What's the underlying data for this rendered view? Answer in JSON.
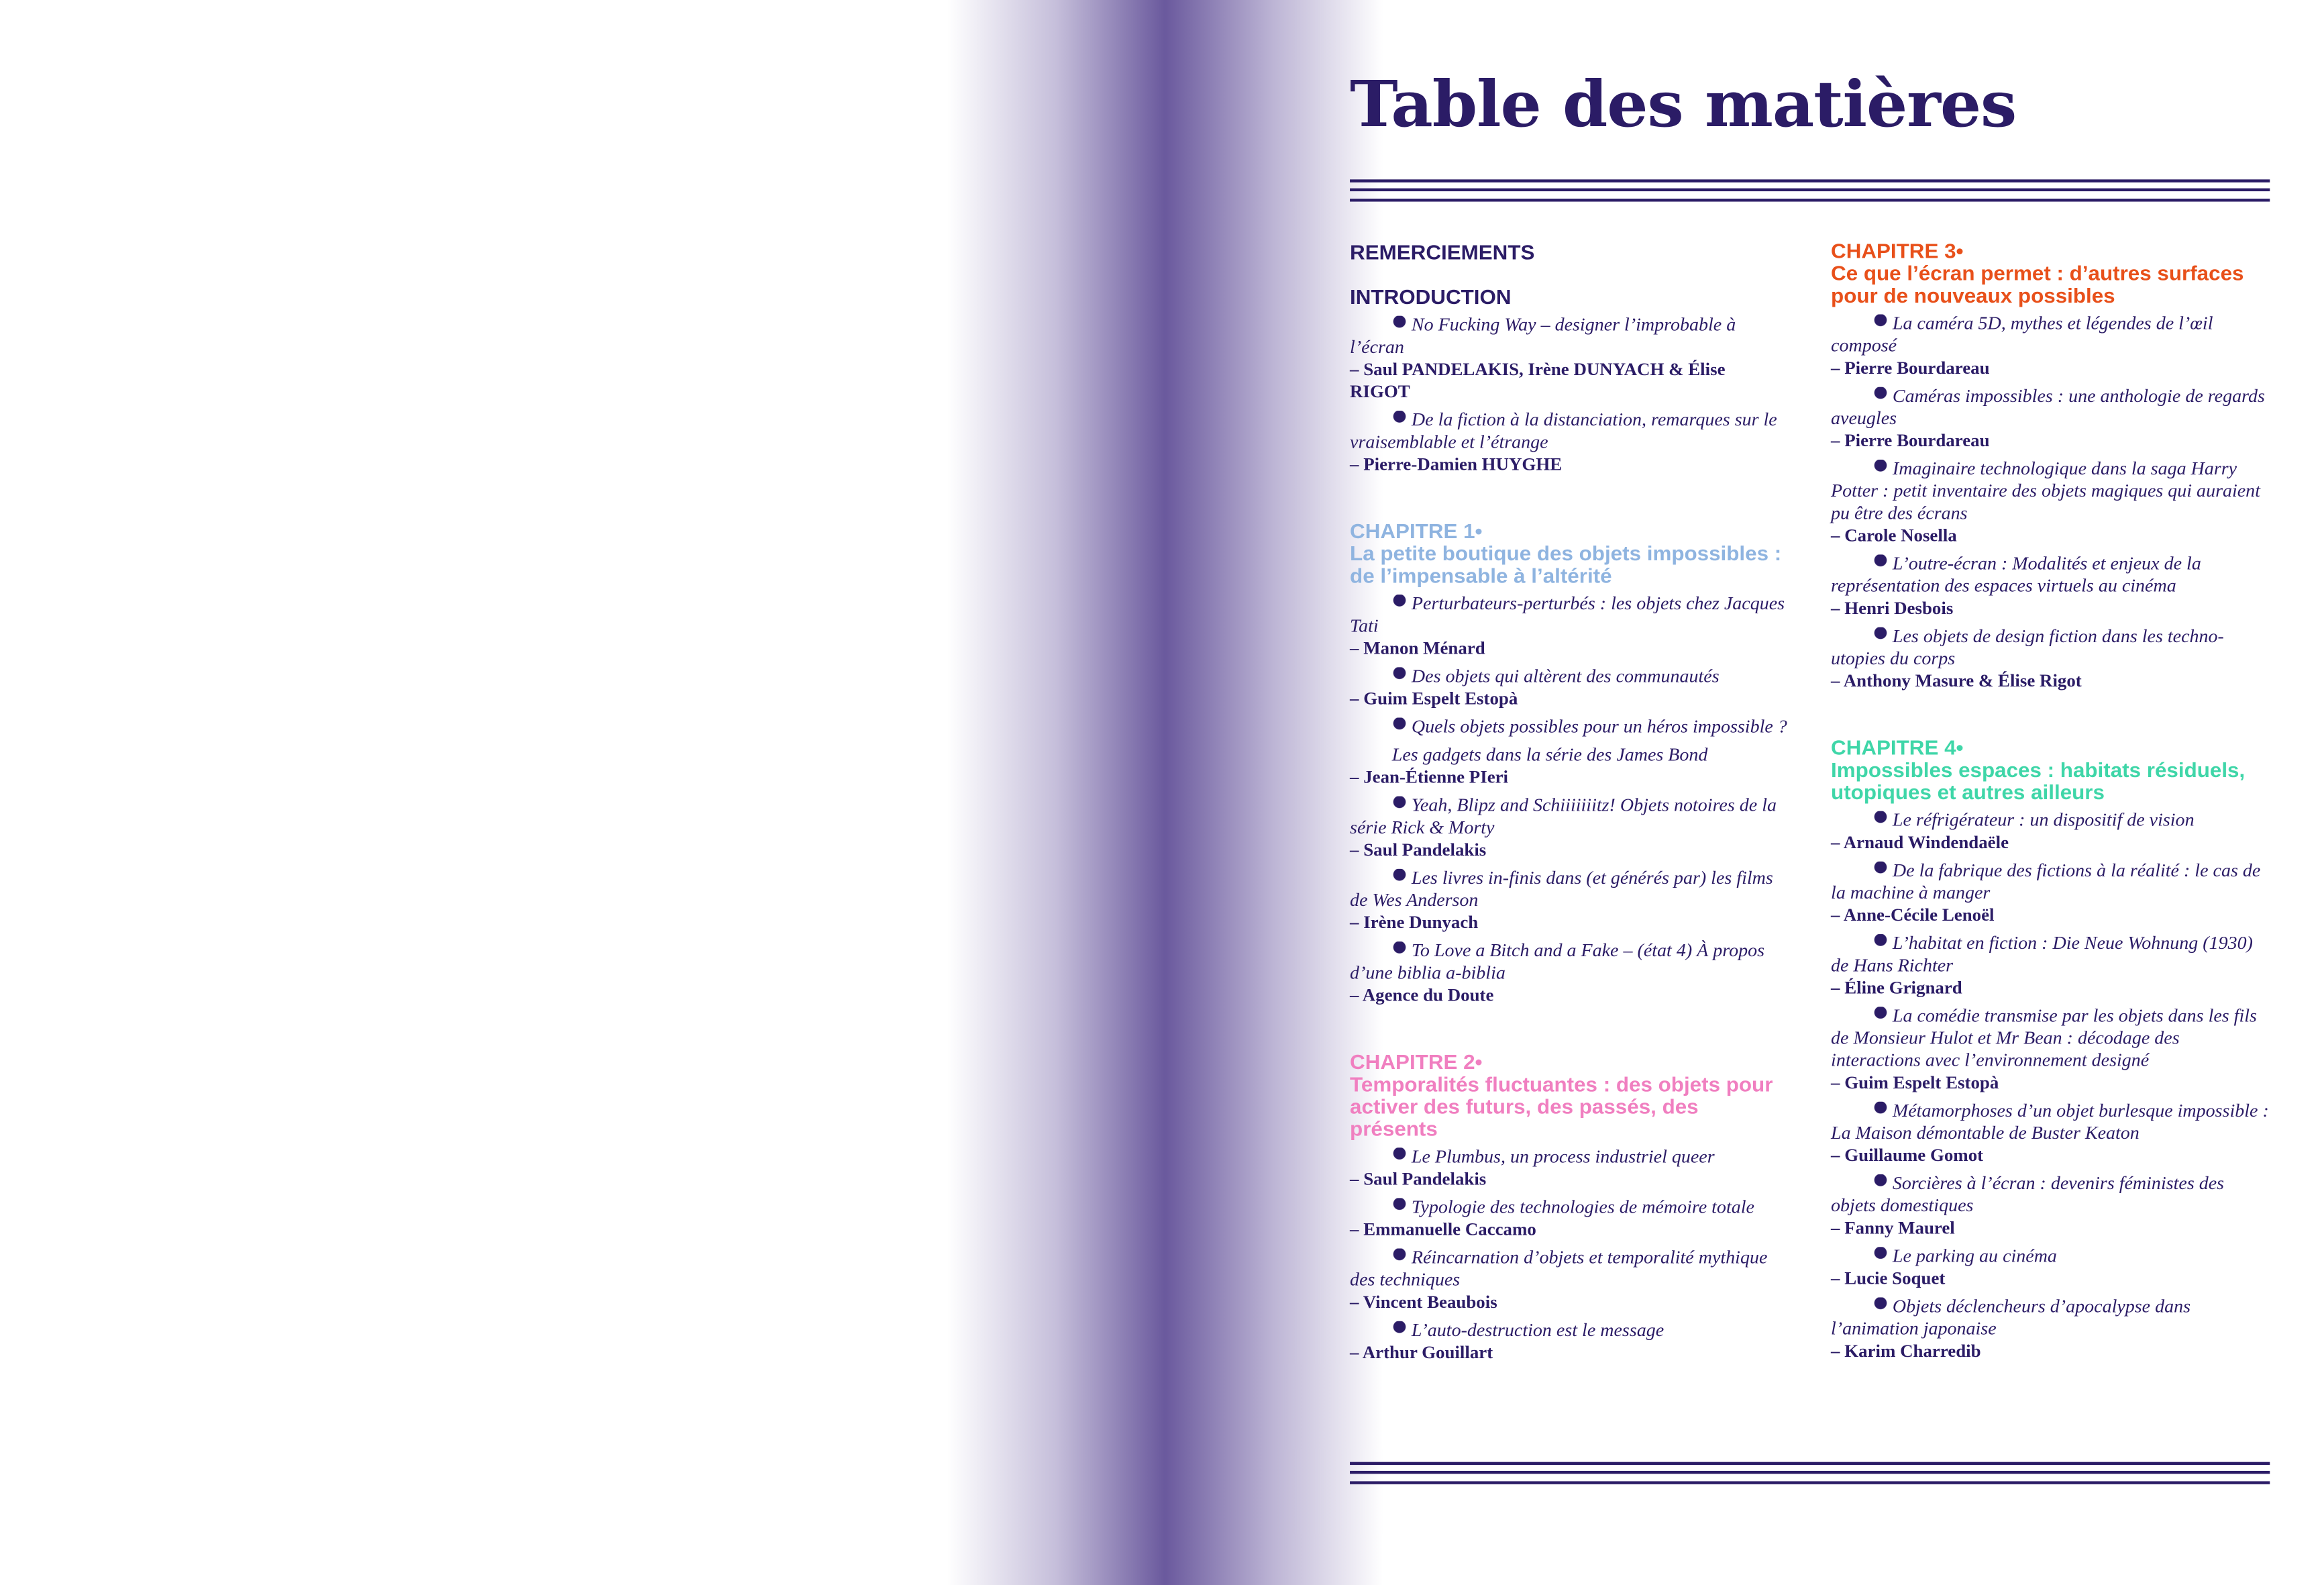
{
  "title": "Table des matières",
  "left": [
    {
      "heading": "REMERCIEMENTS"
    },
    {
      "heading": "INTRODUCTION",
      "entries": [
        {
          "title": "No Fucking Way – designer l’improbable à l’écran",
          "author": "– Saul PANDELAKIS, Irène DUNYACH & Élise RIGOT"
        },
        {
          "title": "De la fiction à la distanciation, remarques sur le vraisemblable et l’étrange",
          "author": "– Pierre-Damien HUYGHE"
        }
      ]
    },
    {
      "label": "CHAPITRE 1•",
      "subtitle": "La petite boutique des objets impossibles : de l’impensable à l’altérité",
      "entries": [
        {
          "title": "Perturbateurs-perturbés : les objets chez Jacques Tati",
          "author": "– Manon Ménard"
        },
        {
          "title": "Des objets qui altèrent des communautés",
          "author": "– Guim Espelt Estopà"
        },
        {
          "title": "Quels objets possibles pour un héros impossible ?",
          "subtitle": "Les gadgets dans la série des James Bond",
          "author": "– Jean-Étienne PIeri"
        },
        {
          "title": "Yeah, Blipz and Schiiiiiiitz! Objets notoires de la série Rick & Morty",
          "author": "– Saul Pandelakis"
        },
        {
          "title": "Les livres in-finis dans (et générés par) les films de Wes Anderson",
          "author": "– Irène Dunyach"
        },
        {
          "title": "To Love a Bitch and a Fake – (état 4) À propos d’une biblia a-biblia",
          "author": "– Agence du Doute"
        }
      ]
    },
    {
      "label": "CHAPITRE 2•",
      "subtitle": "Temporalités fluctuantes : des objets pour activer des futurs, des passés, des présents",
      "entries": [
        {
          "title": "Le Plumbus, un process industriel queer",
          "author": "– Saul Pandelakis"
        },
        {
          "title": "Typologie des technologies de mémoire totale",
          "author": "– Emmanuelle Caccamo"
        },
        {
          "title": "Réincarnation d’objets et temporalité mythique des techniques",
          "author": "– Vincent Beaubois"
        },
        {
          "title": "L’auto-destruction est le message",
          "author": "– Arthur Gouillart"
        }
      ]
    }
  ],
  "right": [
    {
      "label": "CHAPITRE 3•",
      "subtitle": "Ce que l’écran permet : d’autres surfaces pour de nouveaux possibles",
      "entries": [
        {
          "title": "La caméra 5D, mythes et légendes de l’œil composé",
          "author": "– Pierre Bourdareau"
        },
        {
          "title": "Caméras impossibles : une anthologie de regards aveugles",
          "author": "– Pierre Bourdareau"
        },
        {
          "title": "Imaginaire technologique dans la saga Harry Potter : petit inventaire des objets magiques qui auraient pu être des écrans",
          "author": "– Carole Nosella"
        },
        {
          "title": "L’outre-écran : Modalités et enjeux de la représentation des espaces virtuels au cinéma",
          "author": "– Henri Desbois"
        },
        {
          "title": "Les objets de design fiction dans les techno-utopies du corps",
          "author": "– Anthony Masure & Élise Rigot"
        }
      ]
    },
    {
      "label": "CHAPITRE 4•",
      "subtitle": "Impossibles espaces : habitats résiduels, utopiques et autres ailleurs",
      "entries": [
        {
          "title": "Le réfrigérateur : un dispositif de vision",
          "author": "– Arnaud Windendaële"
        },
        {
          "title": "De la fabrique des fictions à la réalité : le cas de la machine à manger",
          "author": "– Anne-Cécile Lenoël"
        },
        {
          "title": "L’habitat en fiction : Die Neue Wohnung (1930) de Hans Richter",
          "author": "– Éline Grignard"
        },
        {
          "title": "La comédie transmise par les objets dans les fils de Monsieur Hulot et Mr Bean : décodage des interactions avec l’environnement designé",
          "author": "– Guim Espelt Estopà"
        },
        {
          "title": "Métamorphoses d’un objet burlesque impossible : La Maison démontable de Buster Keaton",
          "author": "– Guillaume Gomot"
        },
        {
          "title": "Sorcières à l’écran : devenirs féministes des objets domestiques",
          "author": "– Fanny Maurel"
        },
        {
          "title": "Le parking au cinéma",
          "author": "– Lucie Soquet"
        },
        {
          "title": "Objets déclencheurs d’apocalypse dans l’animation japonaise",
          "author": "– Karim Charredib"
        }
      ]
    }
  ]
}
